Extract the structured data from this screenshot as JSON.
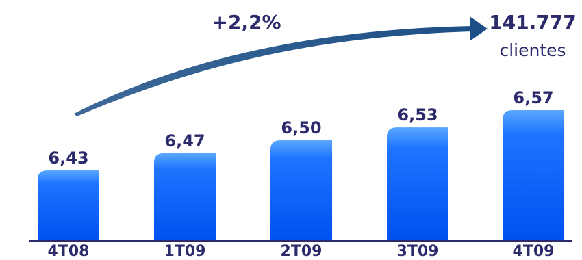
{
  "chart_data": {
    "type": "bar",
    "categories": [
      "4T08",
      "1T09",
      "2T09",
      "3T09",
      "4T09"
    ],
    "values": [
      6.43,
      6.47,
      6.5,
      6.53,
      6.57
    ],
    "value_labels": [
      "6,43",
      "6,47",
      "6,50",
      "6,53",
      "6,57"
    ],
    "title": "",
    "xlabel": "",
    "ylabel": "",
    "grid": false,
    "legend": "none",
    "growth_annotation": "+2,2%",
    "total_value": "141.777",
    "total_unit": "clientes"
  },
  "colors": {
    "bar_top": "#5aa8ff",
    "bar_bottom": "#0050f0",
    "text": "#2b2a6b",
    "arrow": "#1c4f86",
    "axis": "#2b2a6b"
  }
}
